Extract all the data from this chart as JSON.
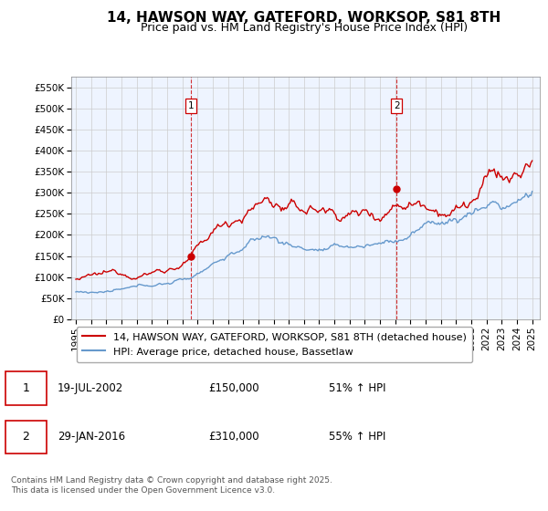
{
  "title": "14, HAWSON WAY, GATEFORD, WORKSOP, S81 8TH",
  "subtitle": "Price paid vs. HM Land Registry's House Price Index (HPI)",
  "ylim": [
    0,
    575000
  ],
  "xlim_start": 1994.7,
  "xlim_end": 2025.5,
  "yticks": [
    0,
    50000,
    100000,
    150000,
    200000,
    250000,
    300000,
    350000,
    400000,
    450000,
    500000,
    550000
  ],
  "ytick_labels": [
    "£0",
    "£50K",
    "£100K",
    "£150K",
    "£200K",
    "£250K",
    "£300K",
    "£350K",
    "£400K",
    "£450K",
    "£500K",
    "£550K"
  ],
  "xticks": [
    1995,
    1996,
    1997,
    1998,
    1999,
    2000,
    2001,
    2002,
    2003,
    2004,
    2005,
    2006,
    2007,
    2008,
    2009,
    2010,
    2011,
    2012,
    2013,
    2014,
    2015,
    2016,
    2017,
    2018,
    2019,
    2020,
    2021,
    2022,
    2023,
    2024,
    2025
  ],
  "red_line_color": "#cc0000",
  "blue_line_color": "#6699cc",
  "fill_color": "#ddeeff",
  "vline_color": "#cc0000",
  "grid_color": "#cccccc",
  "bg_color": "#eef4ff",
  "legend_label_red": "14, HAWSON WAY, GATEFORD, WORKSOP, S81 8TH (detached house)",
  "legend_label_blue": "HPI: Average price, detached house, Bassetlaw",
  "sale1_date": 2002.55,
  "sale1_price": 150000,
  "sale1_label": "1",
  "sale2_date": 2016.08,
  "sale2_price": 310000,
  "sale2_label": "2",
  "table_entries": [
    {
      "num": "1",
      "date": "19-JUL-2002",
      "price": "£150,000",
      "hpi": "51% ↑ HPI"
    },
    {
      "num": "2",
      "date": "29-JAN-2016",
      "price": "£310,000",
      "hpi": "55% ↑ HPI"
    }
  ],
  "footer": "Contains HM Land Registry data © Crown copyright and database right 2025.\nThis data is licensed under the Open Government Licence v3.0.",
  "title_fontsize": 11,
  "subtitle_fontsize": 9,
  "tick_fontsize": 7.5,
  "legend_fontsize": 8
}
